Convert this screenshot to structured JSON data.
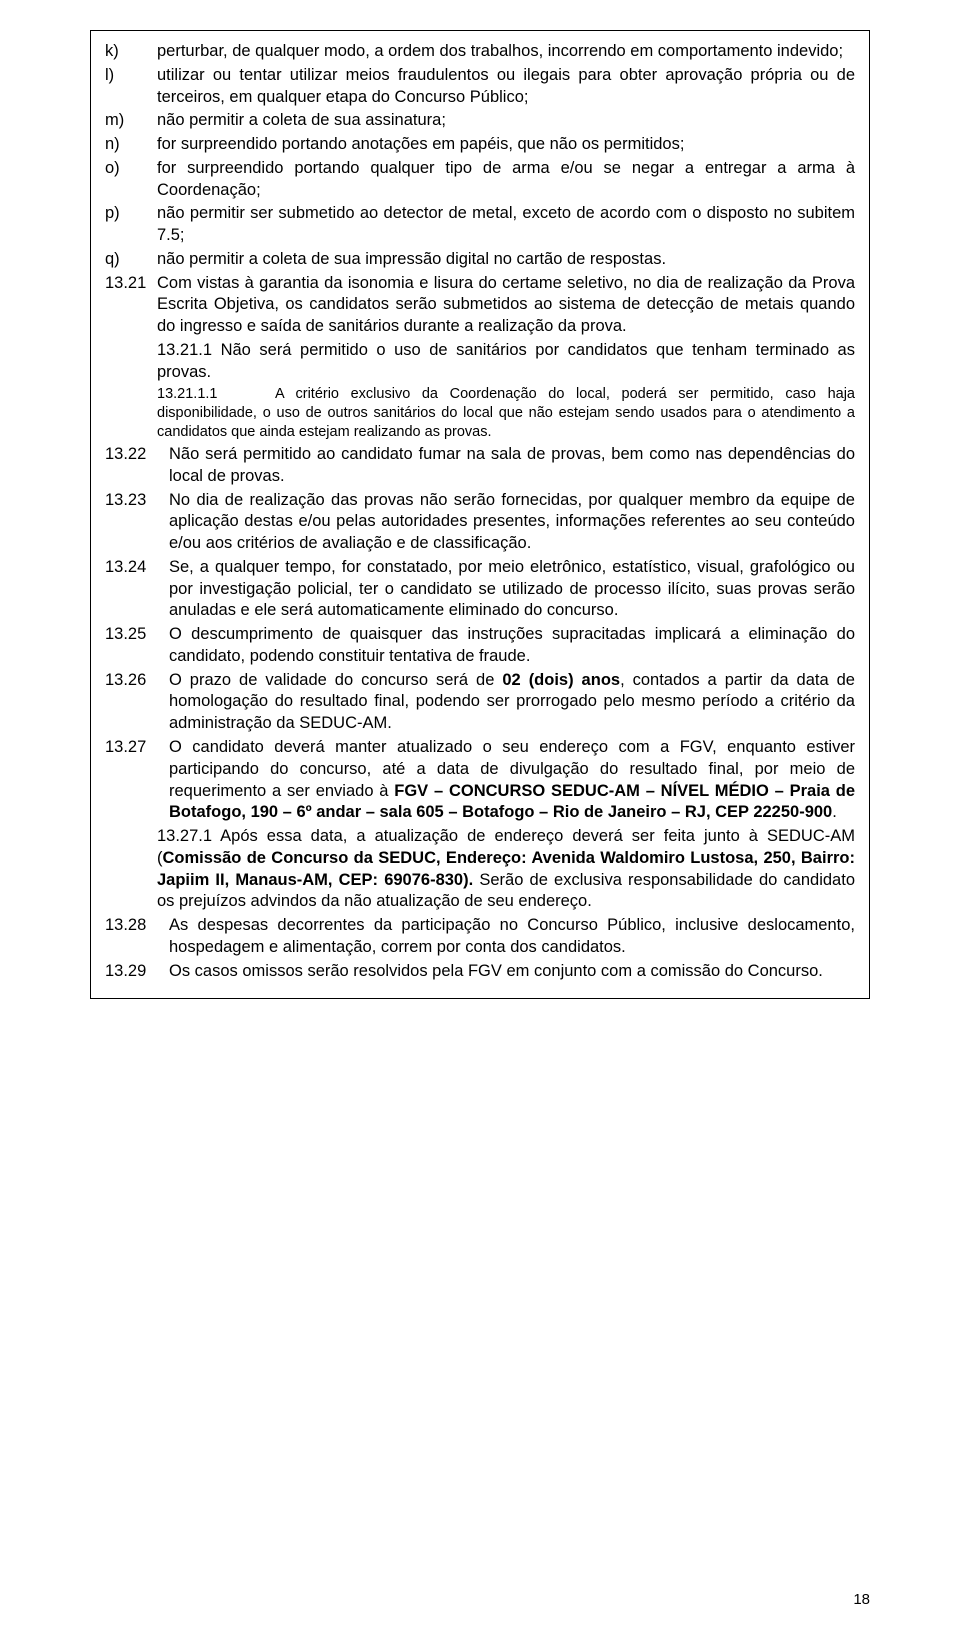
{
  "lettered": {
    "k": {
      "marker": "k)",
      "text": "perturbar, de qualquer modo, a ordem dos trabalhos, incorrendo em comportamento indevido;"
    },
    "l": {
      "marker": "l)",
      "text": "utilizar ou tentar utilizar meios fraudulentos ou ilegais para obter aprovação própria ou de terceiros, em qualquer etapa do Concurso Público;"
    },
    "m": {
      "marker": "m)",
      "text": "não permitir a coleta de sua assinatura;"
    },
    "n": {
      "marker": "n)",
      "text": "for surpreendido portando anotações em papéis, que não os permitidos;"
    },
    "o": {
      "marker": "o)",
      "text": "for surpreendido portando qualquer tipo de arma e/ou se negar a entregar a arma à Coordenação;"
    },
    "p": {
      "marker": "p)",
      "text": "não permitir ser submetido ao detector de metal, exceto de acordo com o disposto no subitem 7.5;"
    },
    "q": {
      "marker": "q)",
      "text": "não permitir a coleta de sua impressão digital no cartão de respostas."
    }
  },
  "num": {
    "n1321": {
      "marker": "13.21",
      "text": "Com vistas à garantia da isonomia e lisura do certame seletivo, no dia de realização da Prova Escrita Objetiva, os candidatos serão submetidos ao sistema de detecção de metais quando do ingresso e saída de sanitários durante a realização da prova."
    },
    "n13211": {
      "text": "13.21.1 Não será permitido o uso de sanitários por candidatos que tenham terminado as provas."
    },
    "n132111": {
      "lead": "13.21.1.1",
      "text": "A critério exclusivo da Coordenação do local, poderá ser permitido, caso haja disponibilidade, o uso de outros sanitários do local que não estejam sendo usados para o atendimento a candidatos que ainda estejam realizando as provas."
    },
    "n1322": {
      "marker": "13.22",
      "text": "Não será permitido ao candidato fumar na sala de provas, bem como nas dependências do local de provas."
    },
    "n1323": {
      "marker": "13.23",
      "text": "No dia de realização das provas não serão fornecidas, por qualquer membro da equipe de aplicação destas e/ou pelas autoridades presentes, informações referentes ao seu conteúdo e/ou aos critérios de avaliação e de classificação."
    },
    "n1324": {
      "marker": "13.24",
      "text": "Se, a qualquer tempo, for constatado, por meio eletrônico, estatístico, visual, grafológico ou por investigação policial, ter o candidato se utilizado de processo ilícito, suas provas serão anuladas e ele será automaticamente eliminado do concurso."
    },
    "n1325": {
      "marker": "13.25",
      "text": "O descumprimento de quaisquer das instruções supracitadas implicará a eliminação do candidato, podendo constituir tentativa de fraude."
    },
    "n1326": {
      "marker": "13.26",
      "pre": "O prazo de validade do concurso será de ",
      "bold": "02 (dois) anos",
      "post": ", contados a partir da data de homologação do resultado final, podendo ser prorrogado pelo mesmo período a critério da administração da SEDUC-AM."
    },
    "n1327": {
      "marker": "13.27",
      "pre": "O candidato deverá manter atualizado o seu endereço com a FGV, enquanto estiver participando do concurso, até a data de divulgação do resultado final, por meio de requerimento a ser enviado à ",
      "bold": "FGV – CONCURSO SEDUC-AM – NÍVEL MÉDIO – Praia de Botafogo, 190 – 6º andar – sala 605 – Botafogo – Rio de Janeiro – RJ, CEP 22250-900",
      "post": "."
    },
    "n13271": {
      "pre": "13.27.1 Após essa data, a atualização de endereço deverá ser feita junto à SEDUC-AM (",
      "bold": "Comissão de Concurso da SEDUC, Endereço: Avenida Waldomiro Lustosa, 250, Bairro: Japiim II, Manaus-AM, CEP: 69076-830).",
      "post": " Serão de exclusiva responsabilidade do candidato os prejuízos advindos da não atualização de seu endereço."
    },
    "n1328": {
      "marker": "13.28",
      "text": "As despesas decorrentes da participação no Concurso Público, inclusive deslocamento, hospedagem e alimentação, correm por conta dos candidatos."
    },
    "n1329": {
      "marker": "13.29",
      "text": "Os casos omissos serão resolvidos pela FGV em conjunto com a comissão do Concurso."
    }
  },
  "pageNumber": "18"
}
